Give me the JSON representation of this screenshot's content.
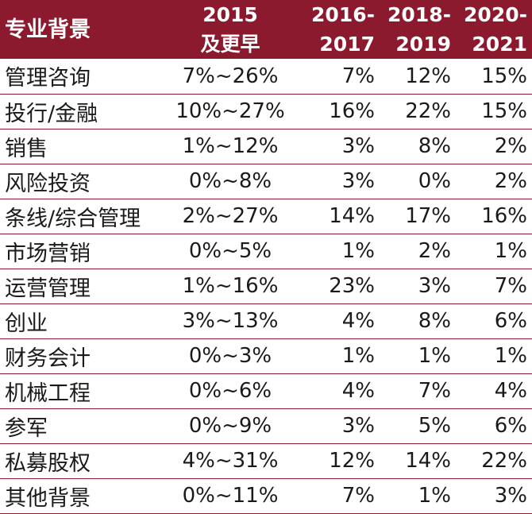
{
  "table": {
    "headers": {
      "category": "专业背景",
      "col2015": [
        "2015",
        "及更早"
      ],
      "col2016": [
        "2016-",
        "2017"
      ],
      "col2018": [
        "2018-",
        "2019"
      ],
      "col2020": [
        "2020-",
        "2021"
      ]
    },
    "rows": [
      {
        "category": "管理咨询",
        "v2015": "7%~26%",
        "v2016": "7%",
        "v2018": "12%",
        "v2020": "15%"
      },
      {
        "category": "投行/金融",
        "v2015": "10%~27%",
        "v2016": "16%",
        "v2018": "22%",
        "v2020": "15%"
      },
      {
        "category": "销售",
        "v2015": "1%~12%",
        "v2016": "3%",
        "v2018": "8%",
        "v2020": "2%"
      },
      {
        "category": "风险投资",
        "v2015": "0%~8%",
        "v2016": "3%",
        "v2018": "0%",
        "v2020": "2%"
      },
      {
        "category": "条线/综合管理",
        "v2015": "2%~27%",
        "v2016": "14%",
        "v2018": "17%",
        "v2020": "16%"
      },
      {
        "category": "市场营销",
        "v2015": "0%~5%",
        "v2016": "1%",
        "v2018": "2%",
        "v2020": "1%"
      },
      {
        "category": "运营管理",
        "v2015": "1%~16%",
        "v2016": "23%",
        "v2018": "3%",
        "v2020": "7%"
      },
      {
        "category": "创业",
        "v2015": "3%~13%",
        "v2016": "4%",
        "v2018": "8%",
        "v2020": "6%"
      },
      {
        "category": "财务会计",
        "v2015": "0%~3%",
        "v2016": "1%",
        "v2018": "1%",
        "v2020": "1%"
      },
      {
        "category": "机械工程",
        "v2015": "0%~6%",
        "v2016": "4%",
        "v2018": "7%",
        "v2020": "4%"
      },
      {
        "category": "参军",
        "v2015": "0%~9%",
        "v2016": "3%",
        "v2018": "5%",
        "v2020": "6%"
      },
      {
        "category": "私募股权",
        "v2015": "4%~31%",
        "v2016": "12%",
        "v2018": "14%",
        "v2020": "22%"
      },
      {
        "category": "其他背景",
        "v2015": "0%~11%",
        "v2016": "7%",
        "v2018": "1%",
        "v2020": "3%"
      }
    ]
  },
  "colors": {
    "header_bg": "#8b1a2e",
    "header_text": "#ffffff",
    "row_border": "#8b1a2e",
    "cell_text": "#1a1a1a"
  }
}
